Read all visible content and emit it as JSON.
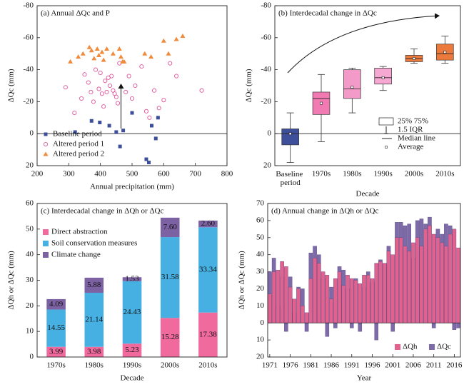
{
  "chart_data": [
    {
      "type": "scatter",
      "title": "(a) Annual ΔQc and P",
      "xlabel": "Annual precipitation (mm)",
      "ylabel": "ΔQc (mm)",
      "xlim": [
        200,
        800
      ],
      "xticks": [
        200,
        300,
        400,
        500,
        600,
        700,
        800
      ],
      "ylim": [
        -80,
        20
      ],
      "yticks": [
        -80,
        -60,
        -40,
        -20,
        0,
        20
      ],
      "y_inverted": true,
      "legend": "lower left",
      "series": [
        {
          "name": "Baseline period",
          "color": "#3d4f9a",
          "marker": "square",
          "x": [
            320,
            372,
            398,
            428,
            450,
            462,
            472,
            500,
            545,
            553,
            562,
            575,
            582
          ],
          "values": [
            -1,
            -8,
            -7,
            -5,
            -1,
            8,
            -2,
            -13,
            16,
            18,
            -5,
            3,
            -10
          ]
        },
        {
          "name": "Altered period 1",
          "color": "#e0559a",
          "marker": "circle",
          "x": [
            290,
            318,
            340,
            350,
            362,
            370,
            378,
            385,
            395,
            400,
            405,
            410,
            415,
            420,
            425,
            430,
            435,
            440,
            445,
            450,
            455,
            460,
            480,
            490,
            500,
            510,
            530,
            545,
            555,
            570,
            585,
            600,
            620,
            640,
            720
          ],
          "values": [
            -29,
            -13,
            -22,
            -37,
            -32,
            -26,
            -20,
            -40,
            -28,
            -38,
            -25,
            -17,
            -33,
            -26,
            -35,
            -30,
            -36,
            -27,
            -25,
            -23,
            -19,
            -44,
            -26,
            -36,
            -22,
            -30,
            -42,
            -14,
            -10,
            -27,
            -16,
            -21,
            -44,
            -36,
            -27
          ]
        },
        {
          "name": "Altered period 2",
          "color": "#f08a3c",
          "marker": "triangle",
          "x": [
            305,
            330,
            345,
            365,
            372,
            380,
            390,
            395,
            405,
            410,
            420,
            440,
            460,
            465,
            470,
            475,
            540,
            560,
            600,
            615,
            640,
            660
          ],
          "values": [
            -45,
            -48,
            -50,
            -54,
            -52,
            -47,
            -53,
            -49,
            -51,
            -46,
            -53,
            -50,
            -53,
            -48,
            -45,
            -45,
            -50,
            -48,
            -58,
            -50,
            -59,
            -61
          ]
        }
      ]
    },
    {
      "type": "box",
      "title": "(b) Interdecadal change in ΔQc",
      "xlabel": "Decade",
      "ylabel": "ΔQc (mm)",
      "ylim": [
        -80,
        20
      ],
      "yticks": [
        -80,
        -60,
        -40,
        -20,
        0,
        20
      ],
      "y_inverted": true,
      "categories": [
        "Baseline period",
        "1970s",
        "1980s",
        "1990s",
        "2000s",
        "2010s"
      ],
      "boxes": [
        {
          "low": -13,
          "q1": -3,
          "median": 0,
          "q3": 7,
          "high": 18,
          "mean": 0,
          "color": "#3d4f9a"
        },
        {
          "low": -37,
          "q1": -26,
          "median": -22,
          "q3": -12,
          "high": 5,
          "mean": -19,
          "color": "#f27ab3"
        },
        {
          "low": -41,
          "q1": -40,
          "median": -28,
          "q3": -22,
          "high": -13,
          "mean": -29,
          "color": "#f39ac8"
        },
        {
          "low": -42,
          "q1": -41,
          "median": -35,
          "q3": -31,
          "high": -27,
          "mean": -35,
          "color": "#f5a8d2"
        },
        {
          "low": -53,
          "q1": -49,
          "median": -47,
          "q3": -45,
          "high": -44,
          "mean": -47,
          "color": "#ec7a3c"
        },
        {
          "low": -61,
          "q1": -56,
          "median": -50,
          "q3": -46,
          "high": -44,
          "mean": -51,
          "color": "#ec7a3c"
        }
      ],
      "legend_labels": [
        "25% 75%",
        "1.5 IQR",
        "Median line",
        "Average"
      ]
    },
    {
      "type": "stacked_bar",
      "title": "(c) Interdecadal change in ΔQh or ΔQc",
      "xlabel": "Decade",
      "ylabel": "ΔQh or ΔQc (mm)",
      "ylim": [
        0,
        60
      ],
      "yticks": [
        0,
        10,
        20,
        30,
        40,
        50,
        60
      ],
      "legend": "upper left",
      "categories": [
        "1970s",
        "1980s",
        "1990s",
        "2000s",
        "2010s"
      ],
      "series": [
        {
          "name": "Direct abstraction",
          "color": "#f06a9e",
          "values": [
            3.99,
            3.98,
            5.23,
            15.28,
            17.38
          ],
          "value_labels": [
            "3.99",
            "3.98",
            "5.23",
            "15.28",
            "17.38"
          ]
        },
        {
          "name": "Soil conservation measures",
          "color": "#47b0e2",
          "values": [
            14.55,
            21.14,
            24.43,
            31.58,
            33.34
          ],
          "value_labels": [
            "14.55",
            "21.14",
            "24.43",
            "31.58",
            "33.34"
          ]
        },
        {
          "name": "Climate change",
          "color": "#7d62a3",
          "values": [
            4.09,
            5.88,
            1.53,
            7.6,
            2.6
          ],
          "value_labels": [
            "4.09",
            "5.88",
            "1.53",
            "7.60",
            "2.60"
          ]
        }
      ]
    },
    {
      "type": "overlap_bar",
      "title": "(d) Annual change in ΔQh or ΔQc",
      "xlabel": "Year",
      "ylabel": "ΔQh or ΔQc (mm)",
      "xlim": [
        1970.5,
        2017.5
      ],
      "xticks": [
        1971,
        1976,
        1981,
        1986,
        1991,
        1996,
        2001,
        2006,
        2011,
        2016
      ],
      "ylim": [
        -20,
        70
      ],
      "yticks": [
        {
          "value": -20,
          "label": "20"
        },
        {
          "value": -10,
          "label": "10"
        },
        0,
        10,
        20,
        30,
        40,
        50,
        60,
        70
      ],
      "legend": "lower right",
      "x": [
        1971,
        1972,
        1973,
        1974,
        1975,
        1976,
        1977,
        1978,
        1979,
        1980,
        1981,
        1982,
        1983,
        1984,
        1985,
        1986,
        1987,
        1988,
        1989,
        1990,
        1991,
        1992,
        1993,
        1994,
        1995,
        1996,
        1997,
        1998,
        1999,
        2000,
        2001,
        2002,
        2003,
        2004,
        2005,
        2006,
        2007,
        2008,
        2009,
        2010,
        2011,
        2012,
        2013,
        2014,
        2015,
        2016,
        2017
      ],
      "series": [
        {
          "name": "ΔQc",
          "color": "#7d6aa8",
          "values": [
            30,
            38,
            10,
            27,
            -5,
            27,
            6,
            21,
            20,
            -5,
            41,
            45,
            40,
            26,
            -8,
            21,
            -3,
            33,
            31,
            20,
            -3,
            26,
            -5,
            21,
            30,
            24,
            -10,
            37,
            34,
            45,
            -5,
            59,
            59,
            57,
            58,
            38,
            60,
            61,
            58,
            62,
            -3,
            55,
            52,
            58,
            57,
            -4,
            -3
          ]
        },
        {
          "name": "ΔQh",
          "color": "#e2628f",
          "values": [
            17,
            30,
            31,
            36,
            33,
            21,
            14,
            20,
            10,
            6,
            26,
            38,
            35,
            30,
            28,
            14,
            26,
            30,
            22,
            28,
            26,
            25,
            23,
            28,
            28,
            26,
            35,
            36,
            35,
            42,
            40,
            50,
            50,
            45,
            42,
            47,
            50,
            45,
            55,
            57,
            52,
            50,
            47,
            45,
            52,
            55,
            44
          ]
        }
      ]
    }
  ]
}
